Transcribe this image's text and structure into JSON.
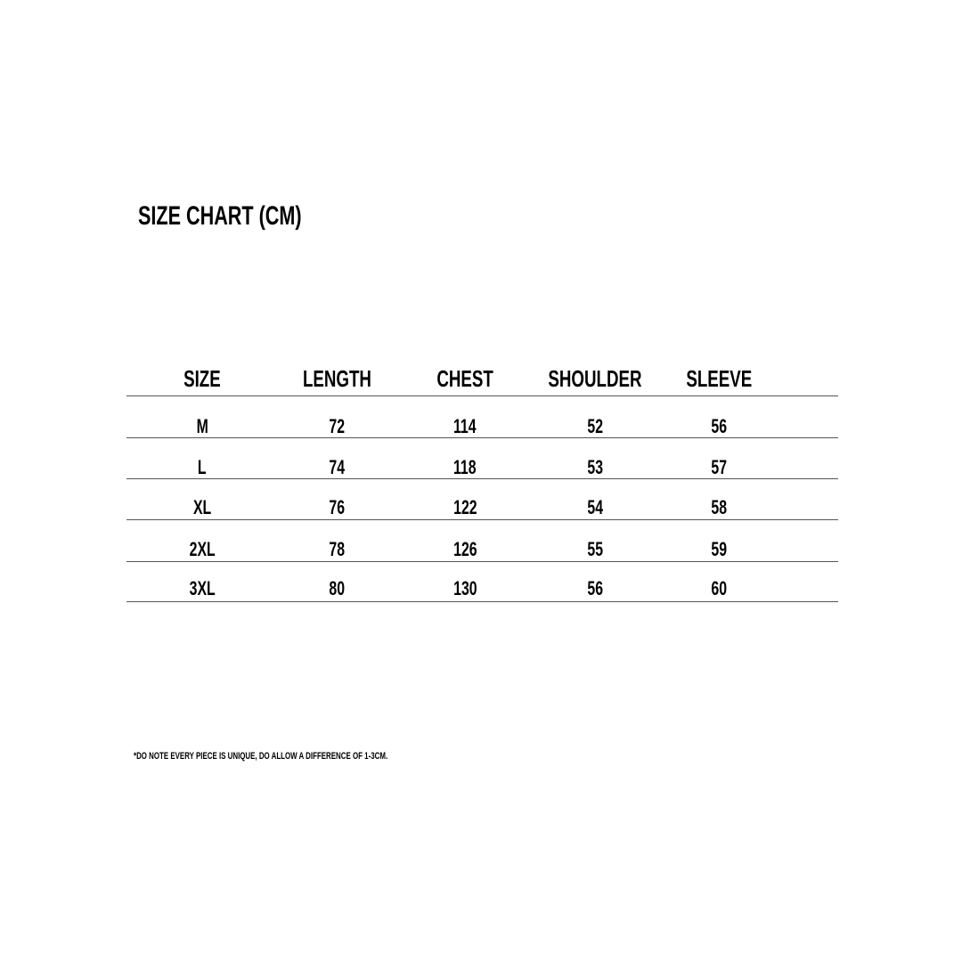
{
  "title": "SIZE CHART (CM)",
  "table": {
    "headers": [
      "SIZE",
      "LENGTH",
      "CHEST",
      "SHOULDER",
      "SLEEVE"
    ],
    "rows": [
      [
        "M",
        "72",
        "114",
        "52",
        "56"
      ],
      [
        "L",
        "74",
        "118",
        "53",
        "57"
      ],
      [
        "XL",
        "76",
        "122",
        "54",
        "58"
      ],
      [
        "2XL",
        "78",
        "126",
        "55",
        "59"
      ],
      [
        "3XL",
        "80",
        "130",
        "56",
        "60"
      ]
    ]
  },
  "note": "*DO NOTE EVERY PIECE IS UNIQUE, DO ALLOW A DIFFERENCE OF 1-3CM."
}
